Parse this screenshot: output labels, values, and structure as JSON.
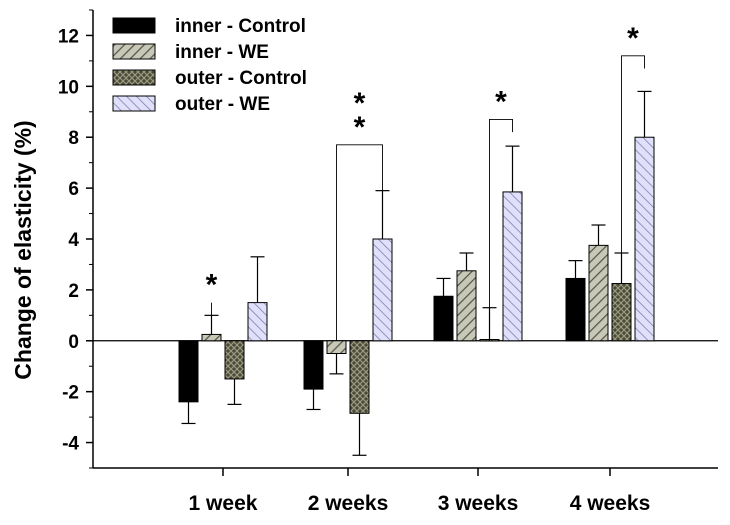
{
  "chart_data": {
    "type": "bar",
    "categories": [
      "1 week",
      "2 weeks",
      "3 weeks",
      "4 weeks"
    ],
    "ylabel": "Change of elasticity (%)",
    "xlabel": "",
    "ylim": [
      -5,
      13
    ],
    "yticks": [
      -4,
      -2,
      0,
      2,
      4,
      6,
      8,
      10,
      12
    ],
    "grid": false,
    "legend_position": "top-left",
    "series": [
      {
        "name": "inner - Control",
        "pattern": "solid",
        "color": "#000000",
        "values": [
          -2.4,
          -1.9,
          1.75,
          2.45
        ],
        "errors": [
          0.85,
          0.8,
          0.7,
          0.7
        ]
      },
      {
        "name": "inner - WE",
        "pattern": "diagonal-hatch",
        "color": "#b8b8a8",
        "values": [
          0.25,
          -0.5,
          2.75,
          3.75
        ],
        "errors": [
          0.75,
          0.8,
          0.7,
          0.8
        ]
      },
      {
        "name": "outer - Control",
        "pattern": "crosshatch",
        "color": "#4a4a38",
        "values": [
          -1.5,
          -2.85,
          0.05,
          2.25
        ],
        "errors": [
          1.0,
          1.65,
          1.25,
          1.2
        ]
      },
      {
        "name": "outer - WE",
        "pattern": "diagonal-hatch-lavender",
        "color": "#d4d4f4",
        "values": [
          1.5,
          4.0,
          5.85,
          8.0
        ],
        "errors": [
          1.8,
          1.9,
          1.8,
          1.8
        ]
      }
    ],
    "annotations": [
      {
        "category": "1 week",
        "text": "*",
        "from_series": 1,
        "to_series": 1,
        "bracket_from_y": 0.3,
        "bracket_to_y": 0.6,
        "top_y": 1.5
      },
      {
        "category": "2 weeks",
        "text": "* *",
        "from_series": 1,
        "to_series": 3,
        "bracket_from_y": 0.0,
        "bracket_to_y": 4.0,
        "top_y": 7.7
      },
      {
        "category": "3 weeks",
        "text": "*",
        "from_series": 2,
        "to_series": 3,
        "bracket_from_y": 0.0,
        "bracket_to_y": 8.2,
        "top_y": 8.7
      },
      {
        "category": "4 weeks",
        "text": "*",
        "from_series": 2,
        "to_series": 3,
        "bracket_from_y": 2.9,
        "bracket_to_y": 10.7,
        "top_y": 11.2
      }
    ]
  }
}
